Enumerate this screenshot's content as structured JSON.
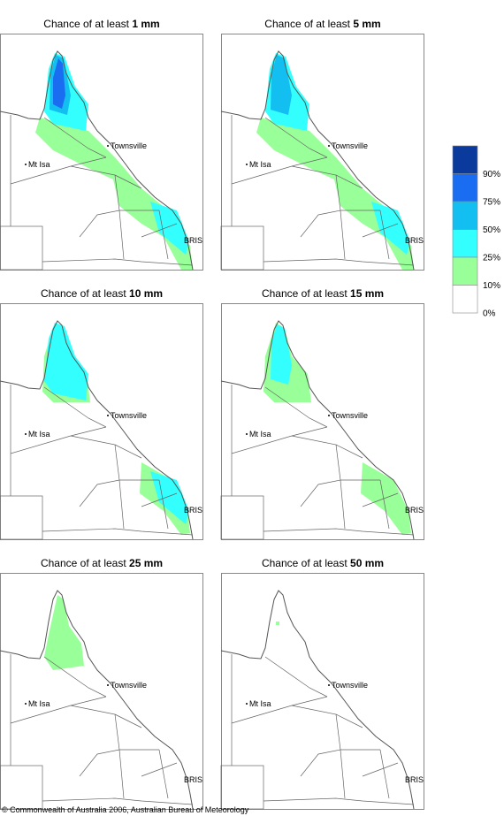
{
  "panels": [
    {
      "title": "Chance of at least",
      "amount": "1 mm"
    },
    {
      "title": "Chance of at least",
      "amount": "5 mm"
    },
    {
      "title": "Chance of at least",
      "amount": "10 mm"
    },
    {
      "title": "Chance of at least",
      "amount": "15 mm"
    },
    {
      "title": "Chance of at least",
      "amount": "25 mm"
    },
    {
      "title": "Chance of at least",
      "amount": "50 mm"
    }
  ],
  "places": {
    "townsville": "Townsville",
    "mt_isa": "Mt Isa",
    "bris": "BRIS"
  },
  "legend": [
    "90%",
    "75%",
    "50%",
    "25%",
    "10%",
    "0%"
  ],
  "footer": "© Commonwealth of Australia 2006, Australian Bureau of Meteorology"
}
